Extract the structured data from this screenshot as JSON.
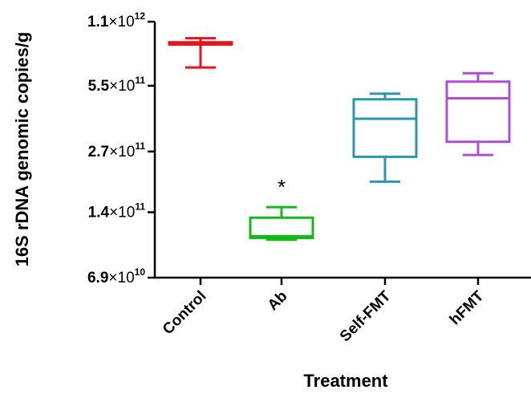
{
  "chart_data": {
    "type": "box",
    "ylabel": "16S rDNA genomic copies/g",
    "xlabel": "Treatment",
    "y_scale": "log",
    "y_ticks": [
      {
        "value": 1100000000000.0,
        "mantissa": "1.1",
        "exponent": "12"
      },
      {
        "value": 550000000000.0,
        "mantissa": "5.5",
        "exponent": "11"
      },
      {
        "value": 270000000000.0,
        "mantissa": "2.7",
        "exponent": "11"
      },
      {
        "value": 140000000000.0,
        "mantissa": "1.4",
        "exponent": "11"
      },
      {
        "value": 69000000000.0,
        "mantissa": "6.9",
        "exponent": "10"
      }
    ],
    "ylim": [
      69000000000.0,
      1100000000000.0
    ],
    "grid": false,
    "legend": "none",
    "categories": [
      "Control",
      "Ab",
      "Self-FMT",
      "hFMT"
    ],
    "boxes": [
      {
        "category": "Control",
        "color": "#e8141c",
        "min": 670000000000.0,
        "q1": 860000000000.0,
        "median": 860000000000.0,
        "q3": 880000000000.0,
        "max": 920000000000.0
      },
      {
        "category": "Ab",
        "color": "#15b81a",
        "min": 104000000000.0,
        "q1": 106000000000.0,
        "median": 108000000000.0,
        "q3": 132000000000.0,
        "max": 148000000000.0
      },
      {
        "category": "Self-FMT",
        "color": "#2a97ae",
        "min": 195000000000.0,
        "q1": 255000000000.0,
        "median": 385000000000.0,
        "q3": 475000000000.0,
        "max": 505000000000.0
      },
      {
        "category": "hFMT",
        "color": "#b04fd6",
        "min": 260000000000.0,
        "q1": 300000000000.0,
        "median": 480000000000.0,
        "q3": 575000000000.0,
        "max": 630000000000.0
      }
    ],
    "annotations": [
      {
        "category": "Ab",
        "text": "*"
      }
    ]
  }
}
